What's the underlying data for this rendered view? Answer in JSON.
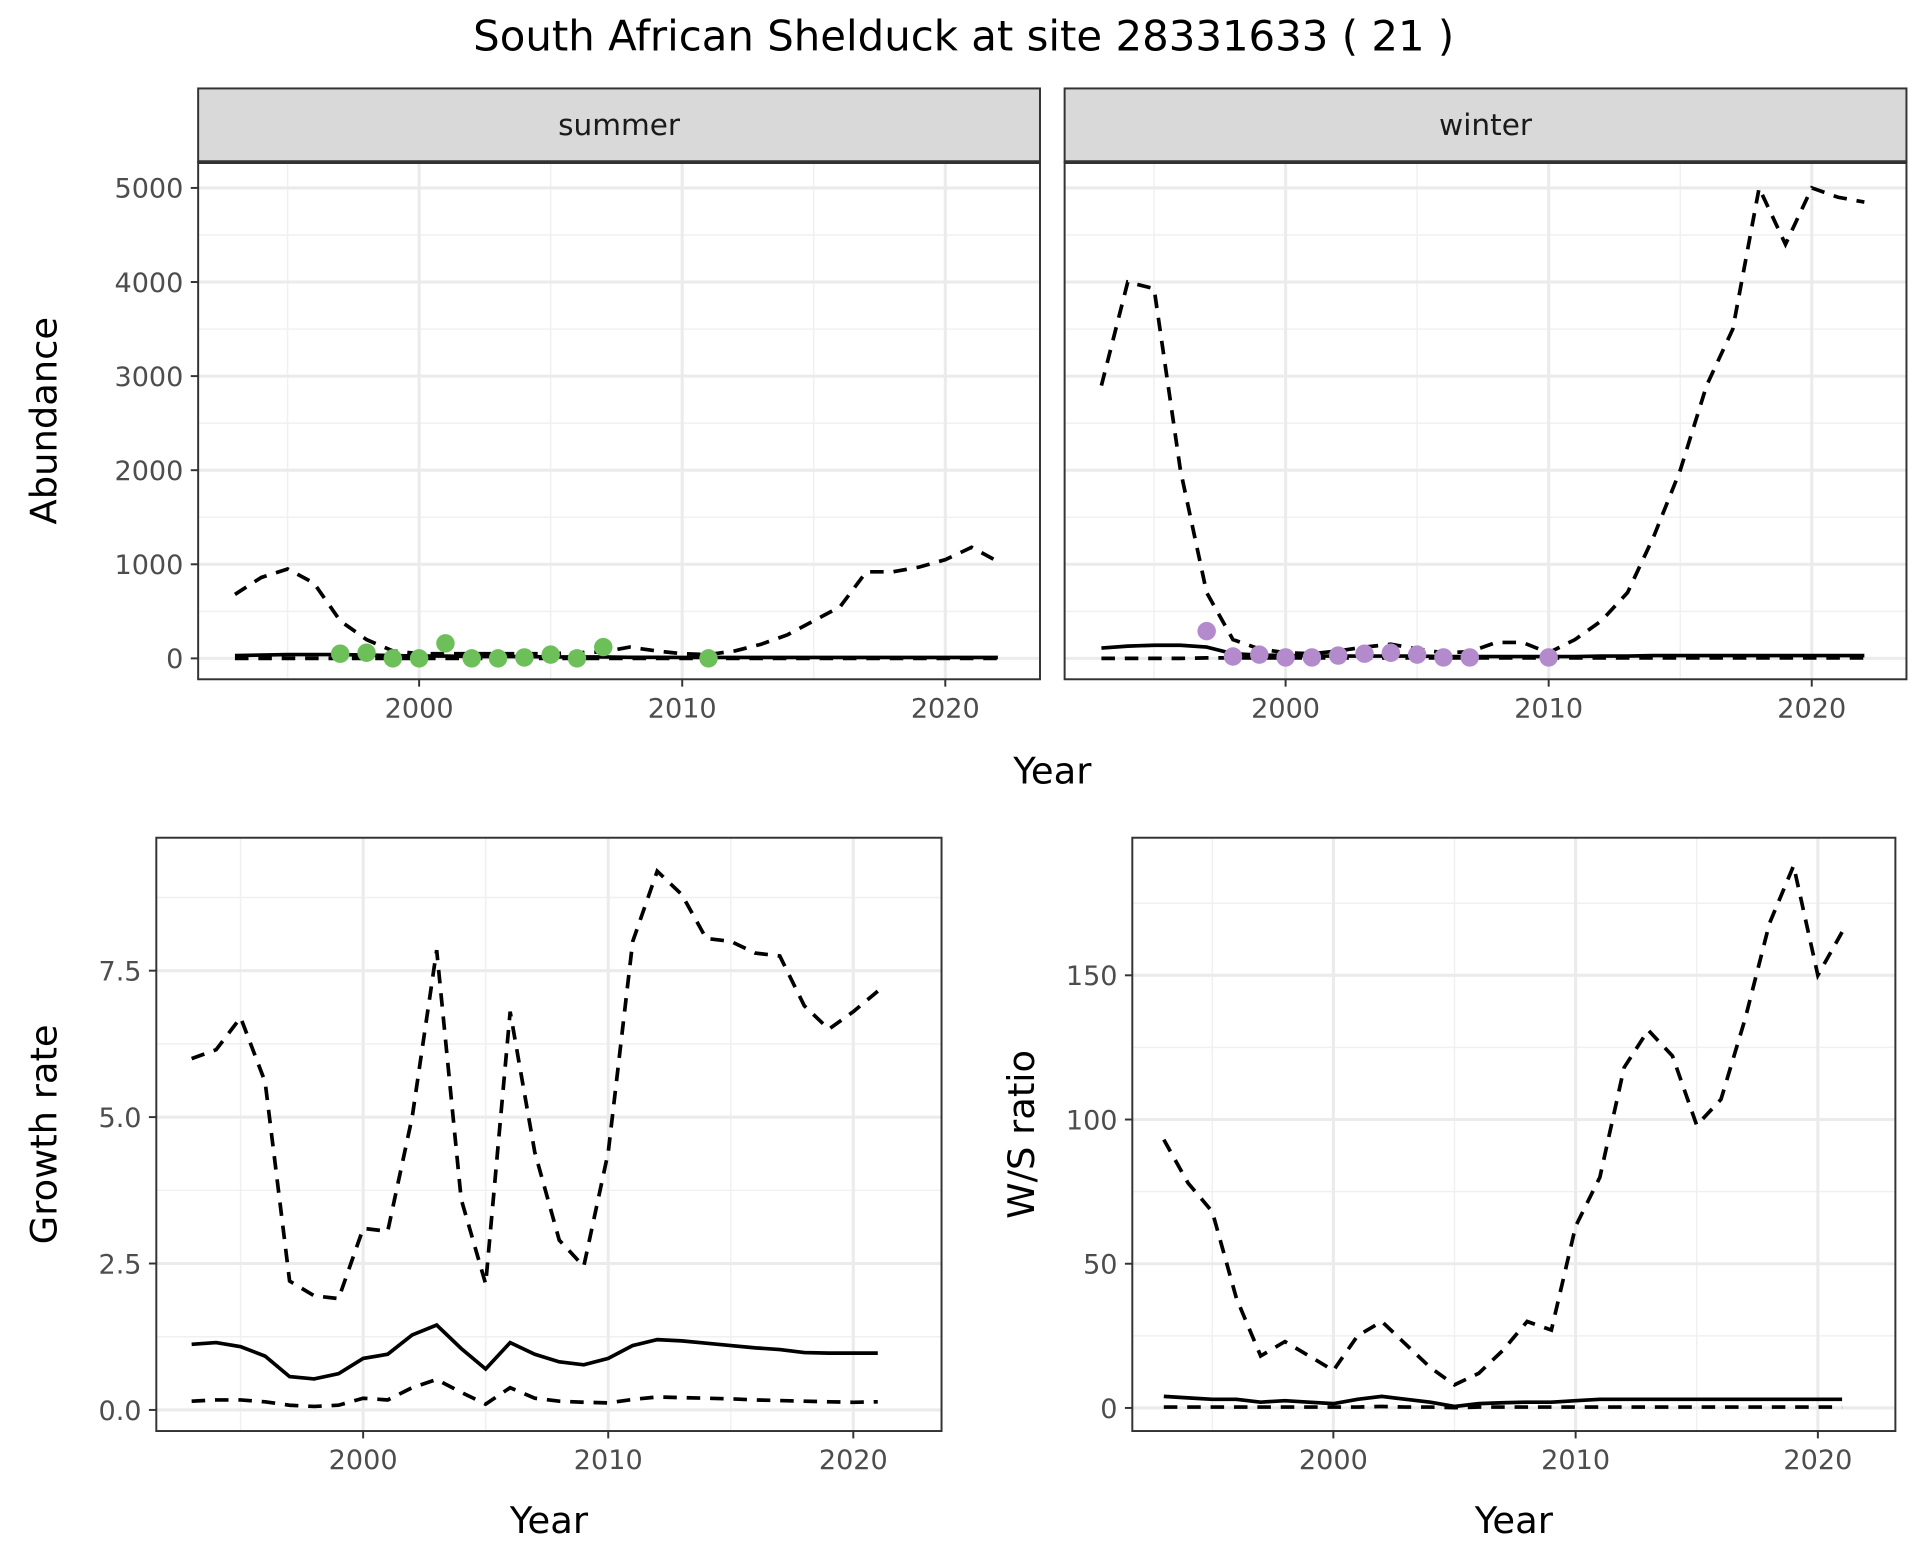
{
  "title": "South African Shelduck at site 28331633 ( 21 )",
  "chart_data": [
    {
      "id": "summer",
      "type": "line",
      "facet_label": "summer",
      "xlabel": "Year",
      "ylabel": "Abundance",
      "xlim": [
        1991.6,
        2023.6
      ],
      "ylim": [
        -222,
        5274
      ],
      "xticks": [
        2000,
        2010,
        2020
      ],
      "yticks": [
        0,
        1000,
        2000,
        3000,
        4000,
        5000
      ],
      "show_yticks": true,
      "x": [
        1993,
        1994,
        1995,
        1996,
        1997,
        1998,
        1999,
        2000,
        2001,
        2002,
        2003,
        2004,
        2005,
        2006,
        2007,
        2008,
        2009,
        2010,
        2011,
        2012,
        2013,
        2014,
        2015,
        2016,
        2017,
        2018,
        2019,
        2020,
        2021,
        2022
      ],
      "series": [
        {
          "name": "upper",
          "style": "dashed",
          "values": [
            680,
            860,
            950,
            800,
            400,
            200,
            80,
            50,
            50,
            50,
            50,
            50,
            50,
            60,
            70,
            120,
            80,
            50,
            40,
            80,
            150,
            250,
            400,
            550,
            920,
            920,
            970,
            1050,
            1180,
            1030
          ]
        },
        {
          "name": "mean",
          "style": "solid",
          "values": [
            30,
            35,
            40,
            40,
            40,
            35,
            30,
            25,
            25,
            20,
            20,
            20,
            15,
            15,
            15,
            12,
            12,
            10,
            10,
            10,
            10,
            10,
            10,
            10,
            10,
            10,
            10,
            10,
            10,
            10
          ]
        },
        {
          "name": "lower",
          "style": "dashed",
          "values": [
            0,
            0,
            0,
            0,
            0,
            0,
            0,
            0,
            0,
            0,
            0,
            0,
            0,
            0,
            0,
            0,
            0,
            0,
            0,
            0,
            0,
            0,
            0,
            0,
            0,
            0,
            0,
            0,
            0,
            0
          ]
        }
      ],
      "points": {
        "color": "#6dbf5a",
        "x": [
          1997,
          1998,
          1999,
          2000,
          2001,
          2002,
          2003,
          2004,
          2005,
          2006,
          2007,
          2011
        ],
        "y": [
          50,
          60,
          0,
          0,
          160,
          0,
          0,
          10,
          40,
          0,
          120,
          0
        ]
      }
    },
    {
      "id": "winter",
      "type": "line",
      "facet_label": "winter",
      "xlabel": "",
      "ylabel": "",
      "xlim": [
        1991.6,
        2023.6
      ],
      "ylim": [
        -222,
        5274
      ],
      "xticks": [
        2000,
        2010,
        2020
      ],
      "yticks": [
        0,
        1000,
        2000,
        3000,
        4000,
        5000
      ],
      "show_yticks": false,
      "x": [
        1993,
        1994,
        1995,
        1996,
        1997,
        1998,
        1999,
        2000,
        2001,
        2002,
        2003,
        2004,
        2005,
        2006,
        2007,
        2008,
        2009,
        2010,
        2011,
        2012,
        2013,
        2014,
        2015,
        2016,
        2017,
        2018,
        2019,
        2020,
        2021,
        2022
      ],
      "series": [
        {
          "name": "upper",
          "style": "dashed",
          "values": [
            2900,
            4000,
            3930,
            2000,
            700,
            200,
            100,
            60,
            50,
            80,
            120,
            150,
            100,
            60,
            70,
            170,
            170,
            60,
            200,
            400,
            700,
            1300,
            2000,
            2900,
            3500,
            5000,
            4400,
            5000,
            4900,
            4850
          ]
        },
        {
          "name": "mean",
          "style": "solid",
          "values": [
            110,
            130,
            140,
            140,
            120,
            50,
            35,
            30,
            25,
            25,
            25,
            25,
            25,
            20,
            20,
            20,
            20,
            20,
            20,
            25,
            25,
            30,
            30,
            30,
            30,
            30,
            30,
            30,
            30,
            30
          ]
        },
        {
          "name": "lower",
          "style": "dashed",
          "values": [
            0,
            0,
            0,
            0,
            5,
            5,
            5,
            5,
            5,
            5,
            5,
            5,
            5,
            5,
            5,
            5,
            5,
            5,
            5,
            5,
            5,
            5,
            5,
            5,
            5,
            5,
            5,
            5,
            5,
            5
          ]
        }
      ],
      "points": {
        "color": "#b38acb",
        "x": [
          1997,
          1998,
          1999,
          2000,
          2001,
          2002,
          2003,
          2004,
          2005,
          2006,
          2007,
          2010
        ],
        "y": [
          290,
          20,
          40,
          10,
          10,
          30,
          50,
          60,
          40,
          10,
          10,
          10
        ]
      }
    },
    {
      "id": "growth",
      "type": "line",
      "xlabel": "Year",
      "ylabel": "Growth rate",
      "xlim": [
        1991.56,
        2023.6
      ],
      "ylim": [
        -0.36,
        9.77
      ],
      "xticks": [
        2000,
        2010,
        2020
      ],
      "yticks": [
        0.0,
        2.5,
        5.0,
        7.5
      ],
      "ytick_labels": [
        "0.0",
        "2.5",
        "5.0",
        "7.5"
      ],
      "show_yticks": true,
      "x": [
        1993,
        1994,
        1995,
        1996,
        1997,
        1998,
        1999,
        2000,
        2001,
        2002,
        2003,
        2004,
        2005,
        2006,
        2007,
        2008,
        2009,
        2010,
        2011,
        2012,
        2013,
        2014,
        2015,
        2016,
        2017,
        2018,
        2019,
        2020,
        2021
      ],
      "series": [
        {
          "name": "upper",
          "style": "dashed",
          "values": [
            6.0,
            6.15,
            6.7,
            5.6,
            2.2,
            1.95,
            1.9,
            3.1,
            3.05,
            5.0,
            7.85,
            3.6,
            2.15,
            6.8,
            4.4,
            2.9,
            2.45,
            4.4,
            8.0,
            9.2,
            8.8,
            8.05,
            8.0,
            7.8,
            7.75,
            6.9,
            6.5,
            6.8,
            7.15
          ]
        },
        {
          "name": "mean",
          "style": "solid",
          "values": [
            1.12,
            1.15,
            1.08,
            0.92,
            0.57,
            0.53,
            0.62,
            0.88,
            0.95,
            1.28,
            1.45,
            1.05,
            0.7,
            1.15,
            0.95,
            0.82,
            0.77,
            0.88,
            1.1,
            1.2,
            1.18,
            1.14,
            1.1,
            1.06,
            1.03,
            0.98,
            0.97,
            0.97,
            0.97
          ]
        },
        {
          "name": "lower",
          "style": "dashed",
          "values": [
            0.15,
            0.17,
            0.17,
            0.14,
            0.08,
            0.06,
            0.08,
            0.2,
            0.17,
            0.38,
            0.52,
            0.3,
            0.1,
            0.38,
            0.2,
            0.15,
            0.13,
            0.12,
            0.18,
            0.22,
            0.21,
            0.2,
            0.19,
            0.17,
            0.16,
            0.15,
            0.14,
            0.13,
            0.14
          ]
        }
      ]
    },
    {
      "id": "ratio",
      "type": "line",
      "xlabel": "Year",
      "ylabel": "W/S ratio",
      "xlim": [
        1991.7,
        2023.2
      ],
      "ylim": [
        -8,
        197.7
      ],
      "xticks": [
        2000,
        2010,
        2020
      ],
      "yticks": [
        0,
        50,
        100,
        150
      ],
      "show_yticks": true,
      "x": [
        1993,
        1994,
        1995,
        1996,
        1997,
        1998,
        1999,
        2000,
        2001,
        2002,
        2003,
        2004,
        2005,
        2006,
        2007,
        2008,
        2009,
        2010,
        2011,
        2012,
        2013,
        2014,
        2015,
        2016,
        2017,
        2018,
        2019,
        2020,
        2021
      ],
      "series": [
        {
          "name": "upper",
          "style": "dashed",
          "values": [
            93,
            78,
            68,
            38,
            18,
            23,
            18,
            13,
            25,
            30,
            22,
            14,
            8,
            12,
            20,
            30,
            27,
            63,
            80,
            118,
            131,
            122,
            98,
            107,
            135,
            168,
            188,
            150,
            165
          ]
        },
        {
          "name": "mean",
          "style": "solid",
          "values": [
            4,
            3.5,
            3,
            3,
            2,
            2.5,
            2,
            1.5,
            3,
            4,
            3,
            2,
            0.5,
            1.5,
            1.8,
            2,
            2,
            2.5,
            3,
            3,
            3,
            3,
            3,
            3,
            3,
            3,
            3,
            3,
            3
          ]
        },
        {
          "name": "lower",
          "style": "dashed",
          "values": [
            0.3,
            0.3,
            0.3,
            0.3,
            0.3,
            0.3,
            0.3,
            0.3,
            0.3,
            0.5,
            0.3,
            0.3,
            0.1,
            0.3,
            0.3,
            0.3,
            0.3,
            0.3,
            0.3,
            0.3,
            0.3,
            0.3,
            0.3,
            0.3,
            0.3,
            0.3,
            0.3,
            0.3,
            0.3
          ]
        }
      ]
    }
  ]
}
